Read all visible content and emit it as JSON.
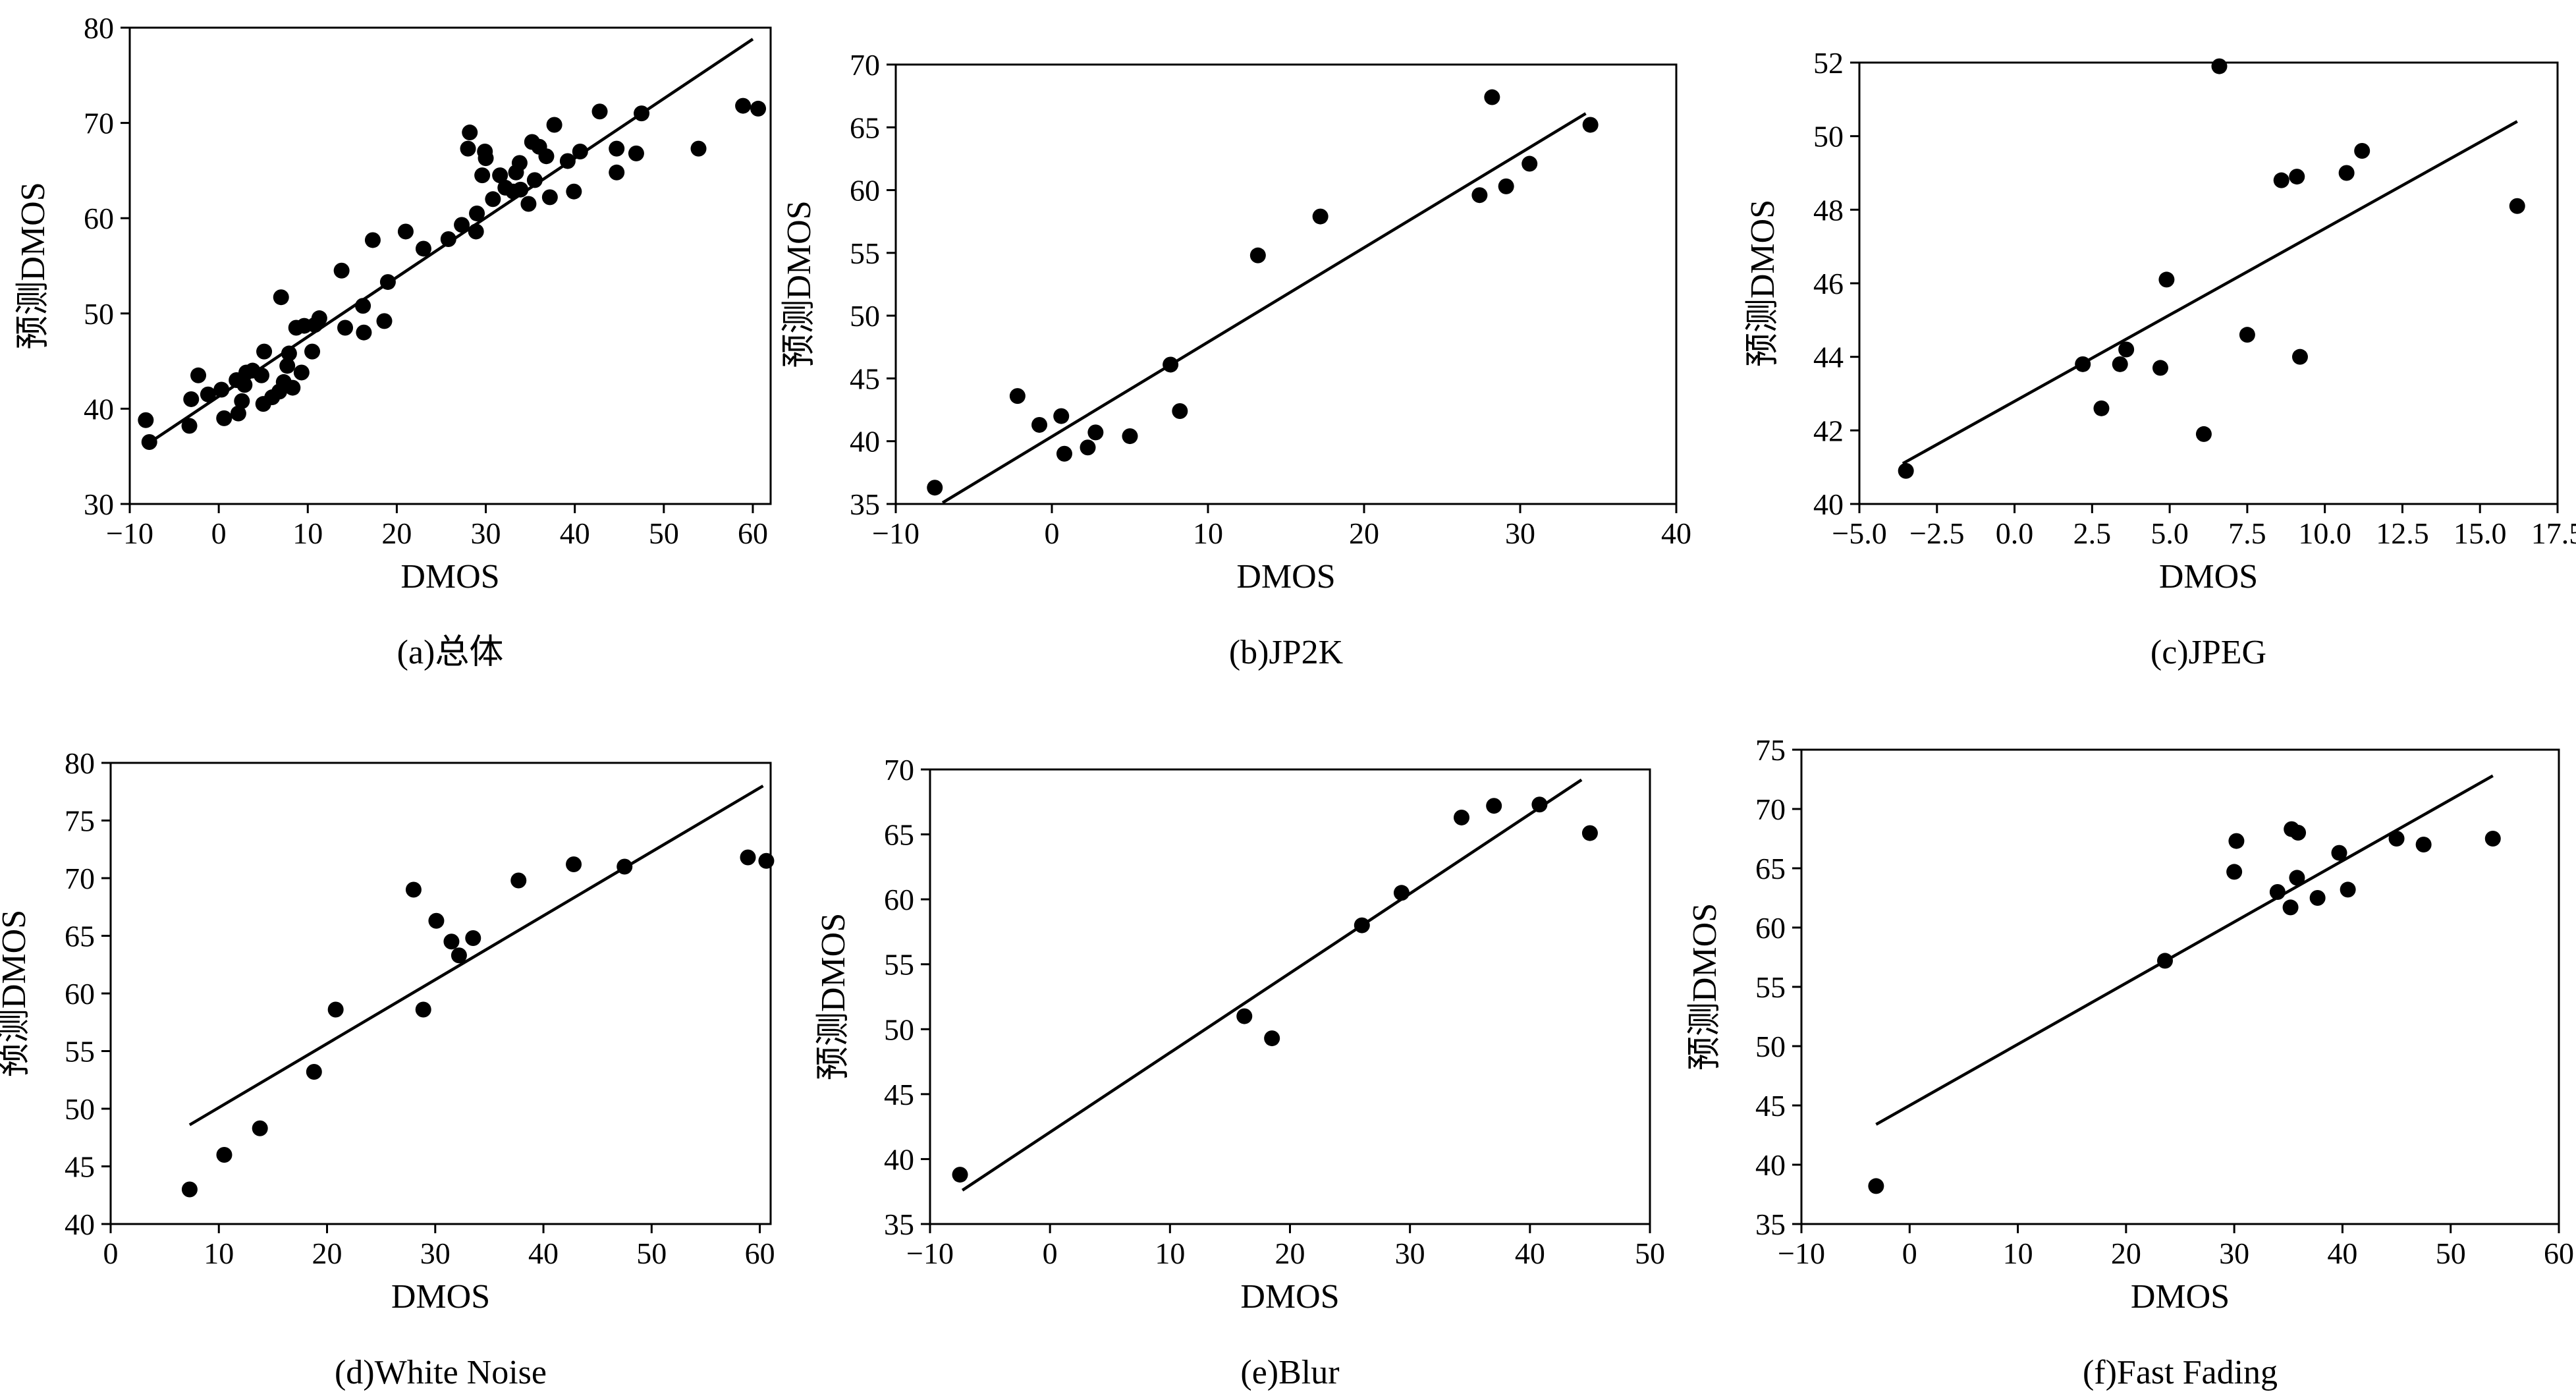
{
  "chart_data": [
    {
      "type": "scatter",
      "caption": "(a)总体",
      "xlabel": "DMOS",
      "ylabel": "预测DMOS",
      "xlim": [
        -10,
        62
      ],
      "ylim": [
        30,
        80
      ],
      "xticks": [
        -10,
        0,
        10,
        20,
        30,
        40,
        50,
        60
      ],
      "yticks": [
        30,
        40,
        50,
        60,
        70,
        80
      ],
      "xtick_labels": [
        "−10",
        "0",
        "10",
        "20",
        "30",
        "40",
        "50",
        "60"
      ],
      "ytick_labels": [
        "30",
        "40",
        "50",
        "60",
        "70",
        "80"
      ],
      "grid": false,
      "points": [
        [
          -8.2,
          38.8
        ],
        [
          -7.8,
          36.5
        ],
        [
          -3.3,
          38.2
        ],
        [
          -3.1,
          41.0
        ],
        [
          -2.3,
          43.5
        ],
        [
          -1.2,
          41.5
        ],
        [
          0.3,
          42.0
        ],
        [
          0.6,
          39.0
        ],
        [
          2.0,
          43.0
        ],
        [
          2.2,
          39.5
        ],
        [
          2.6,
          40.8
        ],
        [
          2.9,
          42.5
        ],
        [
          3.1,
          43.8
        ],
        [
          3.8,
          44.0
        ],
        [
          4.8,
          43.5
        ],
        [
          5.0,
          40.5
        ],
        [
          5.1,
          46.0
        ],
        [
          6.0,
          41.2
        ],
        [
          6.8,
          41.8
        ],
        [
          7.0,
          51.7
        ],
        [
          7.3,
          42.8
        ],
        [
          7.7,
          44.5
        ],
        [
          7.9,
          45.8
        ],
        [
          8.3,
          42.2
        ],
        [
          8.7,
          48.5
        ],
        [
          9.3,
          43.8
        ],
        [
          9.6,
          48.7
        ],
        [
          10.5,
          46.0
        ],
        [
          10.8,
          48.8
        ],
        [
          11.3,
          49.5
        ],
        [
          13.8,
          54.5
        ],
        [
          14.2,
          48.5
        ],
        [
          16.2,
          50.8
        ],
        [
          16.3,
          48.0
        ],
        [
          17.3,
          57.7
        ],
        [
          18.6,
          49.2
        ],
        [
          19.0,
          53.3
        ],
        [
          21.0,
          58.6
        ],
        [
          23.0,
          56.8
        ],
        [
          25.8,
          57.8
        ],
        [
          27.3,
          59.3
        ],
        [
          28.0,
          67.3
        ],
        [
          28.2,
          69.0
        ],
        [
          28.9,
          58.6
        ],
        [
          29.0,
          60.5
        ],
        [
          29.6,
          64.5
        ],
        [
          29.9,
          67.0
        ],
        [
          30.0,
          66.3
        ],
        [
          30.8,
          62.0
        ],
        [
          31.6,
          64.5
        ],
        [
          32.2,
          63.2
        ],
        [
          33.1,
          62.8
        ],
        [
          33.4,
          64.8
        ],
        [
          33.8,
          65.8
        ],
        [
          33.9,
          63.0
        ],
        [
          34.8,
          61.5
        ],
        [
          35.2,
          68.0
        ],
        [
          35.5,
          64.0
        ],
        [
          36.0,
          67.5
        ],
        [
          36.8,
          66.5
        ],
        [
          37.2,
          62.2
        ],
        [
          37.7,
          69.8
        ],
        [
          39.2,
          66.0
        ],
        [
          39.9,
          62.8
        ],
        [
          40.6,
          67.0
        ],
        [
          42.8,
          71.2
        ],
        [
          44.7,
          64.8
        ],
        [
          44.7,
          67.3
        ],
        [
          46.9,
          66.8
        ],
        [
          47.5,
          71.0
        ],
        [
          53.9,
          67.3
        ],
        [
          58.9,
          71.8
        ],
        [
          60.6,
          71.5
        ]
      ],
      "fit_line": [
        [
          -8,
          36.3
        ],
        [
          60,
          78.8
        ]
      ]
    },
    {
      "type": "scatter",
      "caption": "(b)JP2K",
      "xlabel": "DMOS",
      "ylabel": "预测DMOS",
      "xlim": [
        -10,
        40
      ],
      "ylim": [
        35,
        70
      ],
      "xticks": [
        -10,
        0,
        10,
        20,
        30,
        40
      ],
      "yticks": [
        35,
        40,
        45,
        50,
        55,
        60,
        65,
        70
      ],
      "xtick_labels": [
        "−10",
        "0",
        "10",
        "20",
        "30",
        "40"
      ],
      "ytick_labels": [
        "35",
        "40",
        "45",
        "50",
        "55",
        "60",
        "65",
        "70"
      ],
      "grid": false,
      "points": [
        [
          -7.5,
          36.3
        ],
        [
          -2.2,
          43.6
        ],
        [
          -0.8,
          41.3
        ],
        [
          0.6,
          42.0
        ],
        [
          0.8,
          39.0
        ],
        [
          2.3,
          39.5
        ],
        [
          2.8,
          40.7
        ],
        [
          5.0,
          40.4
        ],
        [
          7.6,
          46.1
        ],
        [
          8.2,
          42.4
        ],
        [
          13.2,
          54.8
        ],
        [
          17.2,
          57.9
        ],
        [
          27.4,
          59.6
        ],
        [
          28.2,
          67.4
        ],
        [
          29.1,
          60.3
        ],
        [
          30.6,
          62.1
        ],
        [
          34.5,
          65.2
        ]
      ],
      "fit_line": [
        [
          -7,
          35.1
        ],
        [
          34.2,
          66.1
        ]
      ]
    },
    {
      "type": "scatter",
      "caption": "(c)JPEG",
      "xlabel": "DMOS",
      "ylabel": "预测DMOS",
      "xlim": [
        -5.0,
        17.5
      ],
      "ylim": [
        40,
        52
      ],
      "xticks": [
        -5.0,
        -2.5,
        0.0,
        2.5,
        5.0,
        7.5,
        10.0,
        12.5,
        15.0,
        17.5
      ],
      "yticks": [
        40,
        42,
        44,
        46,
        48,
        50,
        52
      ],
      "xtick_labels": [
        "−5.0",
        "−2.5",
        "0.0",
        "2.5",
        "5.0",
        "7.5",
        "10.0",
        "12.5",
        "15.0",
        "17.5"
      ],
      "ytick_labels": [
        "40",
        "42",
        "44",
        "46",
        "48",
        "50",
        "52"
      ],
      "grid": false,
      "points": [
        [
          -3.5,
          40.9
        ],
        [
          2.2,
          43.8
        ],
        [
          2.8,
          42.6
        ],
        [
          3.4,
          43.8
        ],
        [
          3.6,
          44.2
        ],
        [
          4.7,
          43.7
        ],
        [
          4.9,
          46.1
        ],
        [
          6.1,
          41.9
        ],
        [
          6.6,
          51.9
        ],
        [
          7.5,
          44.6
        ],
        [
          8.6,
          48.8
        ],
        [
          9.1,
          48.9
        ],
        [
          9.2,
          44.0
        ],
        [
          10.7,
          49.0
        ],
        [
          11.2,
          49.6
        ],
        [
          16.2,
          48.1
        ]
      ],
      "fit_line": [
        [
          -3.6,
          41.1
        ],
        [
          16.2,
          50.4
        ]
      ]
    },
    {
      "type": "scatter",
      "caption": "(d)White Noise",
      "xlabel": "DMOS",
      "ylabel": "预测DMOS",
      "xlim": [
        0,
        61
      ],
      "ylim": [
        40,
        80
      ],
      "xticks": [
        0,
        10,
        20,
        30,
        40,
        50,
        60
      ],
      "yticks": [
        40,
        45,
        50,
        55,
        60,
        65,
        70,
        75,
        80
      ],
      "xtick_labels": [
        "0",
        "10",
        "20",
        "30",
        "40",
        "50",
        "60"
      ],
      "ytick_labels": [
        "40",
        "45",
        "50",
        "55",
        "60",
        "65",
        "70",
        "75",
        "80"
      ],
      "grid": false,
      "points": [
        [
          7.3,
          43.0
        ],
        [
          10.5,
          46.0
        ],
        [
          13.8,
          48.3
        ],
        [
          18.8,
          53.2
        ],
        [
          20.8,
          58.6
        ],
        [
          28.0,
          69.0
        ],
        [
          28.9,
          58.6
        ],
        [
          30.1,
          66.3
        ],
        [
          31.5,
          64.5
        ],
        [
          32.2,
          63.3
        ],
        [
          33.5,
          64.8
        ],
        [
          37.7,
          69.8
        ],
        [
          42.8,
          71.2
        ],
        [
          47.5,
          71.0
        ],
        [
          58.9,
          71.8
        ],
        [
          60.6,
          71.5
        ]
      ],
      "fit_line": [
        [
          7.3,
          48.6
        ],
        [
          60.3,
          78.0
        ]
      ]
    },
    {
      "type": "scatter",
      "caption": "(e)Blur",
      "xlabel": "DMOS",
      "ylabel": "预测DMOS",
      "xlim": [
        -10,
        50
      ],
      "ylim": [
        35,
        70
      ],
      "xticks": [
        -10,
        0,
        10,
        20,
        30,
        40,
        50
      ],
      "yticks": [
        35,
        40,
        45,
        50,
        55,
        60,
        65,
        70
      ],
      "xtick_labels": [
        "−10",
        "0",
        "10",
        "20",
        "30",
        "40",
        "50"
      ],
      "ytick_labels": [
        "35",
        "40",
        "45",
        "50",
        "55",
        "60",
        "65",
        "70"
      ],
      "grid": false,
      "points": [
        [
          -7.5,
          38.8
        ],
        [
          16.2,
          51.0
        ],
        [
          18.5,
          49.3
        ],
        [
          26.0,
          58.0
        ],
        [
          29.3,
          60.5
        ],
        [
          34.3,
          66.3
        ],
        [
          37.0,
          67.2
        ],
        [
          40.8,
          67.3
        ],
        [
          45.0,
          65.1
        ]
      ],
      "fit_line": [
        [
          -7.3,
          37.6
        ],
        [
          44.3,
          69.2
        ]
      ]
    },
    {
      "type": "scatter",
      "caption": "(f)Fast Fading",
      "xlabel": "DMOS",
      "ylabel": "预测DMOS",
      "xlim": [
        -10,
        60
      ],
      "ylim": [
        35,
        75
      ],
      "xticks": [
        -10,
        0,
        10,
        20,
        30,
        40,
        50,
        60
      ],
      "yticks": [
        35,
        40,
        45,
        50,
        55,
        60,
        65,
        70,
        75
      ],
      "xtick_labels": [
        "−10",
        "0",
        "10",
        "20",
        "30",
        "40",
        "50",
        "60"
      ],
      "ytick_labels": [
        "35",
        "40",
        "45",
        "50",
        "55",
        "60",
        "65",
        "70",
        "75"
      ],
      "grid": false,
      "points": [
        [
          -3.1,
          38.2
        ],
        [
          23.6,
          57.2
        ],
        [
          30.0,
          64.7
        ],
        [
          30.2,
          67.3
        ],
        [
          34.0,
          63.0
        ],
        [
          35.2,
          61.7
        ],
        [
          35.3,
          68.3
        ],
        [
          35.8,
          64.2
        ],
        [
          35.9,
          68.0
        ],
        [
          37.7,
          62.5
        ],
        [
          39.7,
          66.3
        ],
        [
          40.5,
          63.2
        ],
        [
          45.0,
          67.5
        ],
        [
          47.5,
          67.0
        ],
        [
          53.9,
          67.5
        ]
      ],
      "fit_line": [
        [
          -3.1,
          43.4
        ],
        [
          53.9,
          72.8
        ]
      ]
    }
  ]
}
